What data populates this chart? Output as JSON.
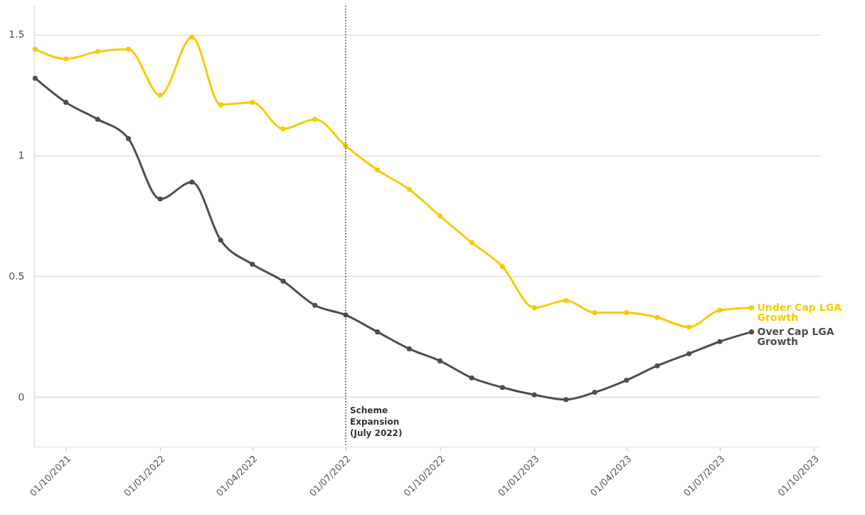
{
  "chart_data": {
    "type": "line",
    "x": [
      "2021-09-01",
      "2021-10-01",
      "2021-11-01",
      "2021-12-01",
      "2022-01-01",
      "2022-02-01",
      "2022-03-01",
      "2022-04-01",
      "2022-05-01",
      "2022-06-01",
      "2022-07-01",
      "2022-08-01",
      "2022-09-01",
      "2022-10-01",
      "2022-11-01",
      "2022-12-01",
      "2023-01-01",
      "2023-02-01",
      "2023-03-01",
      "2023-04-01",
      "2023-05-01",
      "2023-06-01",
      "2023-07-01",
      "2023-08-01"
    ],
    "series": [
      {
        "name": "Under Cap LGA Growth",
        "color": "#f5cc00",
        "values": [
          1.44,
          1.4,
          1.43,
          1.44,
          1.25,
          1.49,
          1.21,
          1.22,
          1.11,
          1.15,
          1.04,
          0.94,
          0.86,
          0.75,
          0.64,
          0.54,
          0.37,
          0.4,
          0.35,
          0.35,
          0.33,
          0.29,
          0.36,
          0.37
        ]
      },
      {
        "name": "Over Cap LGA Growth",
        "color": "#4d4d4d",
        "values": [
          1.32,
          1.22,
          1.15,
          1.07,
          0.82,
          0.89,
          0.65,
          0.55,
          0.48,
          0.38,
          0.34,
          0.27,
          0.2,
          0.15,
          0.08,
          0.04,
          0.01,
          -0.01,
          0.02,
          0.07,
          0.13,
          0.18,
          0.23,
          0.27
        ]
      }
    ],
    "xlim": [
      "2021-08-31",
      "2023-10-07"
    ],
    "xticks": [
      {
        "value": "2021-10-01",
        "label": "01/10/2021"
      },
      {
        "value": "2022-01-01",
        "label": "01/01/2022"
      },
      {
        "value": "2022-04-01",
        "label": "01/04/2022"
      },
      {
        "value": "2022-07-01",
        "label": "01/07/2022"
      },
      {
        "value": "2022-10-01",
        "label": "01/10/2022"
      },
      {
        "value": "2023-01-01",
        "label": "01/01/2023"
      },
      {
        "value": "2023-04-01",
        "label": "01/04/2023"
      },
      {
        "value": "2023-07-01",
        "label": "01/07/2023"
      },
      {
        "value": "2023-10-01",
        "label": "01/10/2023"
      }
    ],
    "ylim": [
      -0.205,
      1.62
    ],
    "yticks": [
      0,
      0.5,
      1,
      1.5
    ],
    "grid": "y",
    "marker": "circle",
    "ref_lines": [
      {
        "axis": "x",
        "value": "2022-07-01",
        "label": "Scheme Expansion (July 2022)",
        "color": "#333333",
        "line_style": "dotted"
      }
    ]
  }
}
